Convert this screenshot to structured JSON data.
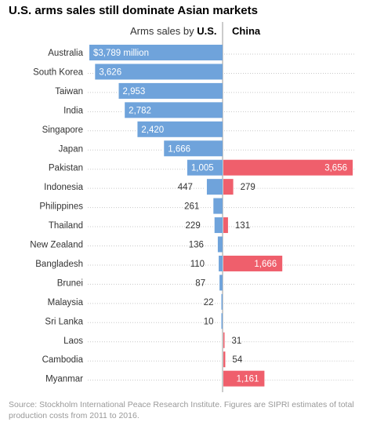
{
  "title": "U.S. arms sales still dominate Asian markets",
  "header": {
    "us_prefix": "Arms sales by ",
    "us_bold": "U.S.",
    "china": "China"
  },
  "source": "Source: Stockholm International Peace Research Institute. Figures are SIPRI estimates of total production costs from 2011 to 2016.",
  "chart_data": {
    "type": "bar",
    "orientation": "horizontal-diverging",
    "title": "U.S. arms sales still dominate Asian markets",
    "unit": "million",
    "categories": [
      "Australia",
      "South Korea",
      "Taiwan",
      "India",
      "Singapore",
      "Japan",
      "Pakistan",
      "Indonesia",
      "Philippines",
      "Thailand",
      "New Zealand",
      "Bangladesh",
      "Brunei",
      "Malaysia",
      "Sri Lanka",
      "Laos",
      "Cambodia",
      "Myanmar"
    ],
    "series": [
      {
        "name": "U.S.",
        "color": "#6fa3db",
        "values": [
          3789,
          3626,
          2953,
          2782,
          2420,
          1666,
          1005,
          447,
          261,
          229,
          136,
          110,
          87,
          22,
          10,
          null,
          null,
          null
        ],
        "labels": [
          "$3,789 million",
          "3,626",
          "2,953",
          "2,782",
          "2,420",
          "1,666",
          "1,005",
          "447",
          "261",
          "229",
          "136",
          "110",
          "87",
          "22",
          "10",
          "",
          "",
          ""
        ]
      },
      {
        "name": "China",
        "color": "#ef5f6c",
        "values": [
          null,
          null,
          null,
          null,
          null,
          null,
          3656,
          279,
          null,
          131,
          null,
          1666,
          null,
          null,
          null,
          31,
          54,
          1161
        ],
        "labels": [
          "",
          "",
          "",
          "",
          "",
          "",
          "3,656",
          "279",
          "",
          "131",
          "",
          "1,666",
          "",
          "",
          "",
          "31",
          "54",
          "1,161"
        ]
      }
    ]
  }
}
